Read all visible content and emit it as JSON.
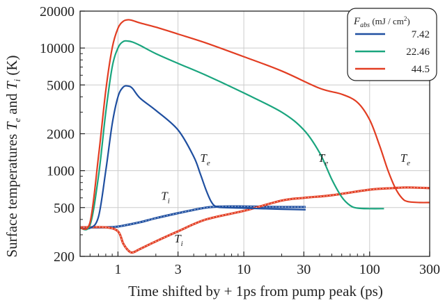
{
  "chart_data": {
    "type": "line",
    "xlabel": "Time shifted by + 1ps from pump peak (ps)",
    "ylabel": "Surface temperatures T_e and T_i (K)",
    "x_scale": "log",
    "y_scale": "log",
    "xlim": [
      0.5,
      300
    ],
    "ylim": [
      200,
      20000
    ],
    "x_ticks": [
      1,
      3,
      10,
      30,
      100,
      300
    ],
    "y_ticks": [
      200,
      500,
      1000,
      2000,
      5000,
      10000,
      20000
    ],
    "grid": true,
    "legend": {
      "title": "F_abs (mJ / cm²)",
      "placement": "top-right"
    },
    "series": [
      {
        "name": "7.42",
        "color": "#1f4fa0",
        "Te": {
          "x": [
            0.5,
            0.6,
            0.7,
            0.8,
            0.9,
            1.0,
            1.1,
            1.2,
            1.3,
            1.5,
            2.0,
            3.0,
            4.0,
            4.5,
            5.0,
            5.5,
            6.0,
            7.0,
            10.0,
            20.0,
            31.0
          ],
          "y": [
            340,
            340,
            420,
            1000,
            2400,
            4000,
            4800,
            4900,
            4700,
            3900,
            3100,
            2150,
            1300,
            950,
            700,
            560,
            510,
            500,
            495,
            485,
            480
          ]
        },
        "Ti": {
          "x": [
            0.5,
            0.8,
            1.0,
            1.5,
            2.0,
            3.0,
            5.0,
            7.0,
            10.0,
            20.0,
            31.0
          ],
          "y": [
            345,
            345,
            350,
            380,
            410,
            450,
            500,
            510,
            510,
            505,
            505
          ]
        },
        "labels": [
          {
            "text": "T",
            "sub": "e",
            "x": 4.5,
            "y": 1180
          },
          {
            "text": "T",
            "sub": "i",
            "x": 2.2,
            "y": 580
          }
        ]
      },
      {
        "name": "22.46",
        "color": "#1aa57e",
        "Te": {
          "x": [
            0.5,
            0.6,
            0.7,
            0.8,
            0.9,
            1.0,
            1.1,
            1.2,
            1.3,
            1.5,
            2.0,
            3.0,
            5.0,
            10.0,
            20.0,
            30.0,
            40.0,
            50.0,
            60.0,
            70.0,
            80.0,
            100.0,
            130.0
          ],
          "y": [
            340,
            360,
            900,
            3000,
            7000,
            10000,
            11300,
            11400,
            11200,
            10500,
            9000,
            7500,
            6000,
            4300,
            3000,
            2150,
            1400,
            850,
            610,
            520,
            495,
            490,
            490
          ]
        },
        "labels": [
          {
            "text": "T",
            "sub": "e",
            "x": 39,
            "y": 1180
          }
        ]
      },
      {
        "name": "44.5",
        "color": "#e23d22",
        "Te": {
          "x": [
            0.5,
            0.6,
            0.7,
            0.8,
            0.9,
            1.0,
            1.1,
            1.2,
            1.3,
            1.5,
            2.0,
            3.0,
            5.0,
            10.0,
            20.0,
            40.0,
            60.0,
            80.0,
            100.0,
            120.0,
            140.0,
            160.0,
            180.0,
            200.0,
            250.0,
            300.0
          ],
          "y": [
            340,
            380,
            1300,
            4500,
            10000,
            14500,
            16500,
            17000,
            16800,
            16000,
            14800,
            13000,
            11000,
            8500,
            6500,
            4700,
            4200,
            3600,
            2600,
            1600,
            1000,
            720,
            600,
            560,
            550,
            550
          ]
        },
        "Ti": {
          "x": [
            0.5,
            0.8,
            1.0,
            1.1,
            1.2,
            1.3,
            1.5,
            2.0,
            3.0,
            5.0,
            10.0,
            20.0,
            30.0,
            50.0,
            100.0,
            150.0,
            200.0,
            300.0
          ],
          "y": [
            345,
            345,
            320,
            255,
            225,
            215,
            230,
            265,
            320,
            400,
            470,
            570,
            600,
            630,
            700,
            720,
            730,
            720
          ]
        },
        "labels": [
          {
            "text": "T",
            "sub": "i",
            "x": 2.8,
            "y": 260
          },
          {
            "text": "T",
            "sub": "e",
            "x": 175,
            "y": 1180
          }
        ]
      }
    ]
  }
}
